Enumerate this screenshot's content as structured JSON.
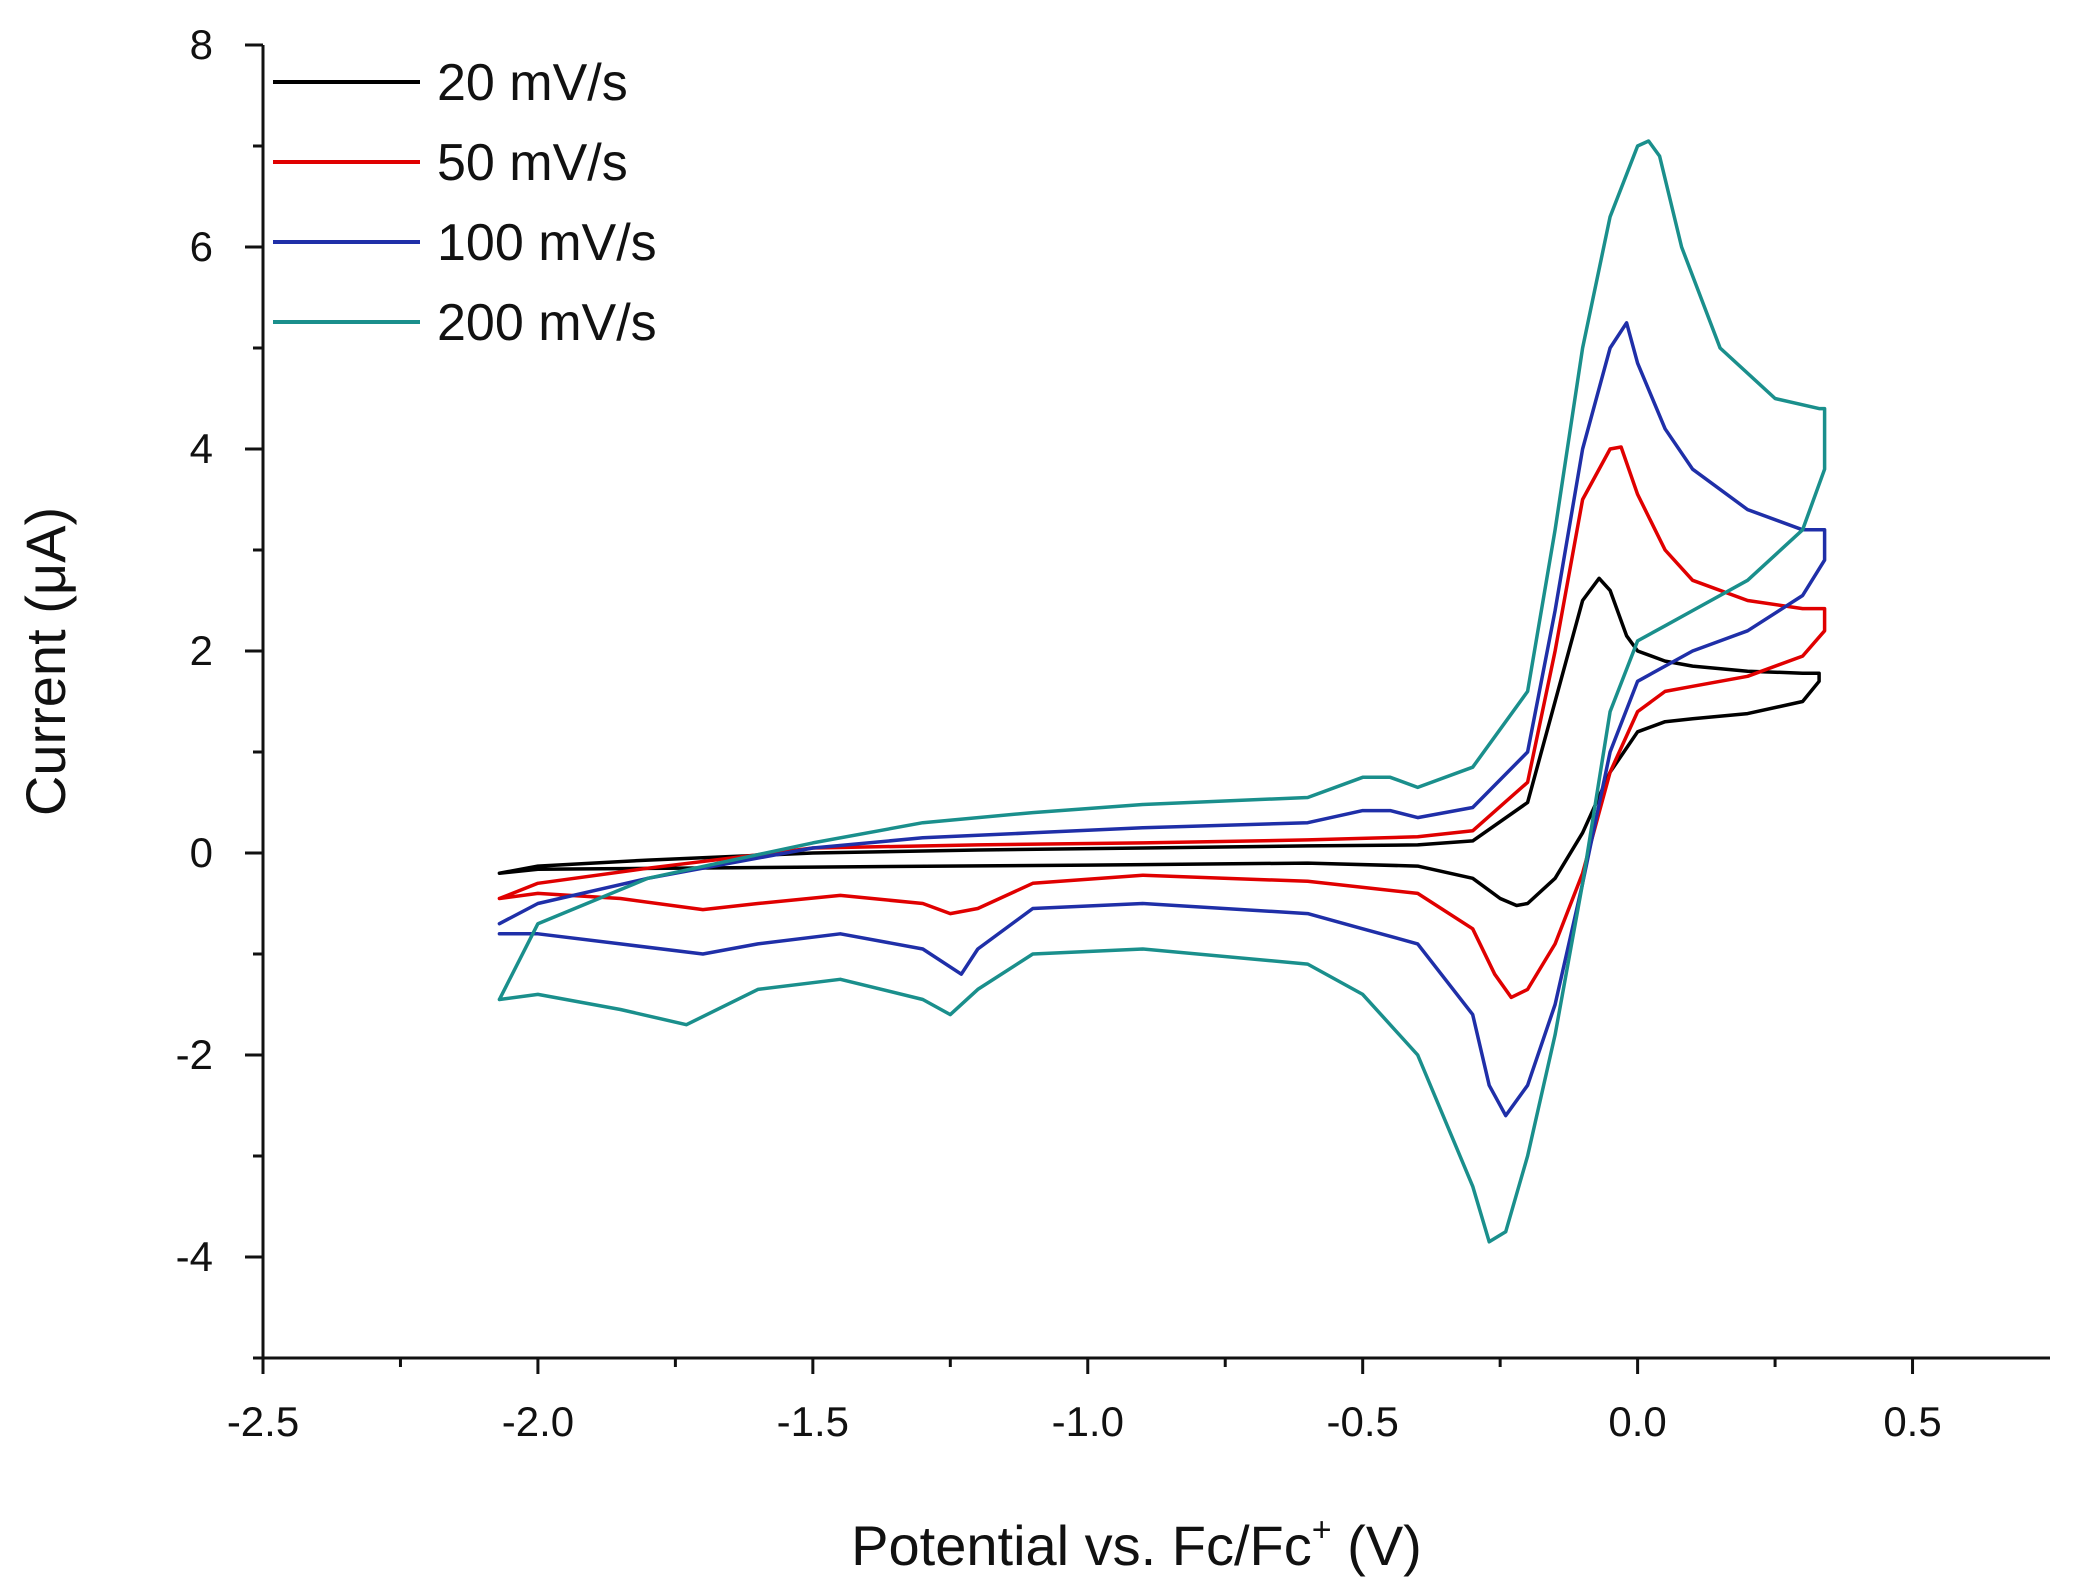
{
  "chart_data": {
    "type": "line",
    "title": "",
    "xlabel": "Potential vs. Fc/Fc",
    "xlabel_sup": "+",
    "xlabel_unit": " (V)",
    "ylabel": "Current (μA)",
    "xlim": [
      -2.5,
      0.75
    ],
    "ylim": [
      -5,
      8
    ],
    "x_ticks": [
      -2.5,
      -2.0,
      -1.5,
      -1.0,
      -0.5,
      0.0,
      0.5
    ],
    "x_tick_labels": [
      "-2.5",
      "-2.0",
      "-1.5",
      "-1.0",
      "-0.5",
      "0.0",
      "0.5"
    ],
    "x_minor_ticks": [
      -2.25,
      -1.75,
      -1.25,
      -0.75,
      -0.25,
      0.25
    ],
    "y_ticks": [
      -4,
      -2,
      0,
      2,
      4,
      6,
      8
    ],
    "y_tick_labels": [
      "-4",
      "-2",
      "0",
      "2",
      "4",
      "6",
      "8"
    ],
    "y_minor_ticks": [
      -5,
      -3,
      -1,
      1,
      3,
      5,
      7
    ],
    "grid": false,
    "legend_position": "top-left",
    "series": [
      {
        "name": "20 mV/s",
        "color": "#000000",
        "x": [
          -2.07,
          -2.0,
          -1.8,
          -1.5,
          -1.2,
          -0.9,
          -0.6,
          -0.4,
          -0.3,
          -0.2,
          -0.15,
          -0.1,
          -0.07,
          -0.05,
          -0.02,
          0.0,
          0.05,
          0.1,
          0.2,
          0.3,
          0.33,
          0.33,
          0.3,
          0.2,
          0.1,
          0.05,
          0.0,
          -0.05,
          -0.1,
          -0.15,
          -0.2,
          -0.22,
          -0.25,
          -0.3,
          -0.4,
          -0.6,
          -1.0,
          -1.5,
          -2.0,
          -2.07
        ],
        "y": [
          -0.2,
          -0.13,
          -0.07,
          0.0,
          0.03,
          0.05,
          0.07,
          0.08,
          0.12,
          0.5,
          1.5,
          2.5,
          2.72,
          2.6,
          2.15,
          2.0,
          1.9,
          1.85,
          1.8,
          1.78,
          1.78,
          1.7,
          1.5,
          1.38,
          1.33,
          1.3,
          1.2,
          0.8,
          0.2,
          -0.25,
          -0.5,
          -0.52,
          -0.45,
          -0.25,
          -0.13,
          -0.1,
          -0.12,
          -0.14,
          -0.16,
          -0.2
        ]
      },
      {
        "name": "50 mV/s",
        "color": "#e00000",
        "x": [
          -2.07,
          -2.0,
          -1.8,
          -1.5,
          -1.2,
          -0.9,
          -0.6,
          -0.4,
          -0.3,
          -0.2,
          -0.15,
          -0.1,
          -0.05,
          -0.03,
          0.0,
          0.05,
          0.1,
          0.2,
          0.3,
          0.34,
          0.34,
          0.3,
          0.2,
          0.1,
          0.05,
          0.0,
          -0.05,
          -0.1,
          -0.15,
          -0.2,
          -0.23,
          -0.26,
          -0.3,
          -0.4,
          -0.6,
          -0.9,
          -1.1,
          -1.2,
          -1.25,
          -1.3,
          -1.45,
          -1.6,
          -1.7,
          -1.85,
          -2.0,
          -2.07
        ],
        "y": [
          -0.45,
          -0.3,
          -0.15,
          0.05,
          0.08,
          0.1,
          0.13,
          0.16,
          0.22,
          0.7,
          2.0,
          3.5,
          4.0,
          4.02,
          3.55,
          3.0,
          2.7,
          2.5,
          2.42,
          2.42,
          2.2,
          1.95,
          1.75,
          1.65,
          1.6,
          1.4,
          0.8,
          -0.2,
          -0.9,
          -1.35,
          -1.43,
          -1.2,
          -0.75,
          -0.4,
          -0.28,
          -0.22,
          -0.3,
          -0.55,
          -0.6,
          -0.5,
          -0.42,
          -0.5,
          -0.56,
          -0.45,
          -0.4,
          -0.45
        ]
      },
      {
        "name": "100 mV/s",
        "color": "#1f2fa8",
        "x": [
          -2.07,
          -2.0,
          -1.8,
          -1.5,
          -1.3,
          -1.1,
          -0.9,
          -0.6,
          -0.5,
          -0.45,
          -0.4,
          -0.3,
          -0.2,
          -0.15,
          -0.1,
          -0.05,
          -0.02,
          0.0,
          0.05,
          0.1,
          0.2,
          0.3,
          0.34,
          0.34,
          0.3,
          0.2,
          0.1,
          0.05,
          0.0,
          -0.05,
          -0.1,
          -0.15,
          -0.2,
          -0.24,
          -0.27,
          -0.3,
          -0.4,
          -0.5,
          -0.6,
          -0.9,
          -1.1,
          -1.2,
          -1.23,
          -1.3,
          -1.45,
          -1.6,
          -1.7,
          -1.85,
          -2.0,
          -2.07
        ],
        "y": [
          -0.7,
          -0.5,
          -0.25,
          0.05,
          0.15,
          0.2,
          0.25,
          0.3,
          0.42,
          0.42,
          0.35,
          0.45,
          1.0,
          2.4,
          4.0,
          5.0,
          5.25,
          4.85,
          4.2,
          3.8,
          3.4,
          3.2,
          3.2,
          2.9,
          2.55,
          2.2,
          2.0,
          1.85,
          1.7,
          1.0,
          -0.3,
          -1.5,
          -2.3,
          -2.6,
          -2.3,
          -1.6,
          -0.9,
          -0.75,
          -0.6,
          -0.5,
          -0.55,
          -0.95,
          -1.2,
          -0.95,
          -0.8,
          -0.9,
          -1.0,
          -0.9,
          -0.8,
          -0.8
        ]
      },
      {
        "name": "200 mV/s",
        "color": "#1a8f8c",
        "x": [
          -2.07,
          -2.0,
          -1.8,
          -1.5,
          -1.3,
          -1.1,
          -0.9,
          -0.6,
          -0.5,
          -0.45,
          -0.4,
          -0.3,
          -0.2,
          -0.15,
          -0.1,
          -0.05,
          0.0,
          0.02,
          0.04,
          0.08,
          0.15,
          0.25,
          0.33,
          0.34,
          0.34,
          0.3,
          0.2,
          0.1,
          0.05,
          0.0,
          -0.05,
          -0.1,
          -0.15,
          -0.2,
          -0.24,
          -0.27,
          -0.3,
          -0.4,
          -0.5,
          -0.6,
          -0.9,
          -1.1,
          -1.2,
          -1.25,
          -1.3,
          -1.45,
          -1.6,
          -1.73,
          -1.85,
          -2.0,
          -2.07
        ],
        "y": [
          -1.45,
          -0.7,
          -0.25,
          0.1,
          0.3,
          0.4,
          0.48,
          0.55,
          0.75,
          0.75,
          0.65,
          0.85,
          1.6,
          3.2,
          5.0,
          6.3,
          7.0,
          7.05,
          6.9,
          6.0,
          5.0,
          4.5,
          4.4,
          4.4,
          3.8,
          3.2,
          2.7,
          2.4,
          2.25,
          2.1,
          1.4,
          -0.3,
          -1.8,
          -3.0,
          -3.75,
          -3.85,
          -3.3,
          -2.0,
          -1.4,
          -1.1,
          -0.95,
          -1.0,
          -1.35,
          -1.6,
          -1.45,
          -1.25,
          -1.35,
          -1.7,
          -1.55,
          -1.4,
          -1.45
        ]
      }
    ]
  }
}
